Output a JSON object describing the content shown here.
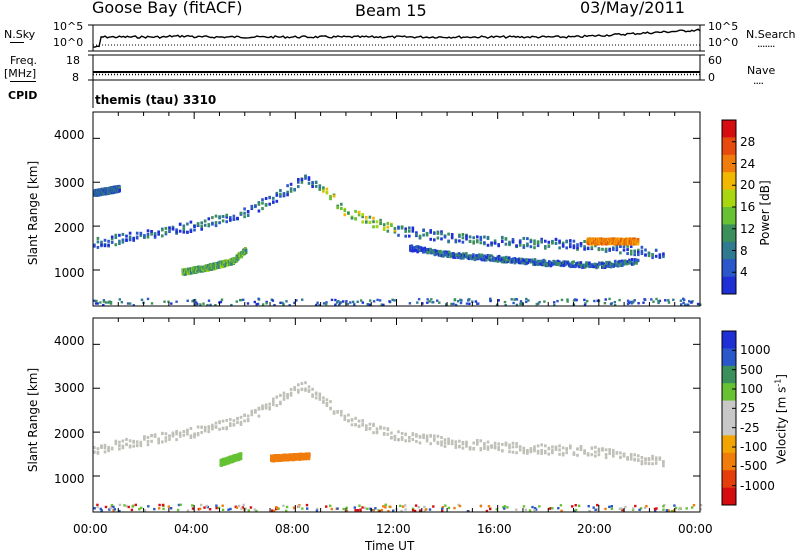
{
  "header": {
    "station": "Goose Bay (fitACF)",
    "beam": "Beam 15",
    "date": "03/May/2011"
  },
  "strip1": {
    "left_label": "N.Sky",
    "left_ticks": [
      "10^5",
      "10^0"
    ],
    "right_ticks": [
      "10^5",
      "10^0"
    ],
    "right_label": "N.Search",
    "right_key": "......."
  },
  "strip2": {
    "left_label": "Freq.",
    "left_unit": "[MHz]",
    "left_ticks": [
      "18",
      "8"
    ],
    "right_ticks": [
      "60",
      "0"
    ],
    "right_label": "Nave",
    "right_key": "....",
    "cpid_label": "CPID",
    "cpid_value": "themis (tau) 3310"
  },
  "colors": {
    "power_scale": [
      "#1f2fd6",
      "#2a57c9",
      "#2f7a8f",
      "#3b8f5a",
      "#66c233",
      "#a8d60f",
      "#f2b800",
      "#f07c0b",
      "#e64a0c",
      "#d60d10"
    ],
    "velocity_scale": [
      "#d60d10",
      "#e63e0b",
      "#f07c0b",
      "#f2a500",
      "#c8c8c8",
      "#c8c8c8",
      "#66c233",
      "#3b8f5a",
      "#2a57c9",
      "#1f2fd6"
    ],
    "ground_scatter": "#c0c0b8"
  },
  "chart_data": [
    {
      "type": "heatmap",
      "name": "power",
      "ylabel": "Slant Range [km]",
      "yticks": [
        "4000",
        "3000",
        "2000",
        "1000"
      ],
      "colorbar_label": "Power [dB]",
      "colorbar_ticks": [
        "28",
        "24",
        "20",
        "16",
        "12",
        "8",
        "4"
      ],
      "features": [
        {
          "t": [
            0.0,
            2.0,
            4.0,
            6.0,
            7.0,
            8.3,
            9.0,
            10.0,
            12.0,
            14.0,
            16.0,
            18.0,
            20.0,
            21.5,
            22.5
          ],
          "range": [
            1600,
            1800,
            2000,
            2300,
            2600,
            3050,
            2900,
            2300,
            1900,
            1750,
            1650,
            1600,
            1550,
            1450,
            1300
          ]
        },
        {
          "t": [
            0.0,
            0.5,
            1.0
          ],
          "range": [
            2750,
            2800,
            2850
          ]
        },
        {
          "t": [
            3.5,
            4.5,
            5.5,
            6.0
          ],
          "range": [
            950,
            1050,
            1200,
            1450
          ]
        },
        {
          "t": [
            12.5,
            14.0,
            16.0,
            18.0,
            20.0,
            21.5
          ],
          "range": [
            1500,
            1350,
            1250,
            1150,
            1100,
            1200
          ]
        },
        {
          "t": [
            19.5,
            21.5
          ],
          "range": [
            1650,
            1650
          ]
        }
      ]
    },
    {
      "type": "heatmap",
      "name": "velocity",
      "ylabel": "Slant Range [km]",
      "yticks": [
        "4000",
        "3000",
        "2000",
        "1000"
      ],
      "xlabel": "Time UT",
      "xticks": [
        "00:00",
        "04:00",
        "08:00",
        "12:00",
        "16:00",
        "20:00",
        "00:00"
      ],
      "colorbar_label": "Velocity [m s",
      "colorbar_unit_sup": "-1",
      "colorbar_unit_end": "]",
      "colorbar_ticks": [
        "1000",
        "500",
        "100",
        "25",
        "-25",
        "-100",
        "-500",
        "-1000"
      ],
      "features": [
        {
          "t": [
            0.0,
            2.0,
            4.0,
            6.0,
            8.3,
            10.0,
            12.0,
            16.0,
            20.0,
            22.5
          ],
          "range": [
            1600,
            1800,
            2000,
            2300,
            3050,
            2300,
            1900,
            1650,
            1550,
            1300
          ]
        },
        {
          "t": [
            5.0,
            5.8
          ],
          "range": [
            1300,
            1450
          ],
          "velocity": "100"
        },
        {
          "t": [
            7.0,
            8.5
          ],
          "range": [
            1400,
            1450
          ],
          "velocity": "-100"
        }
      ]
    }
  ]
}
